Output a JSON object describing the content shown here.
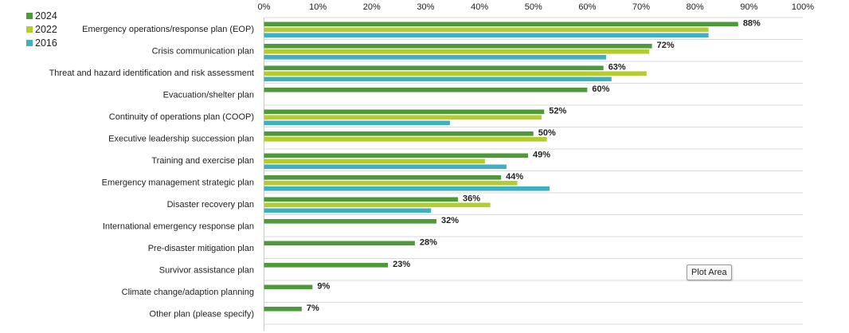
{
  "tooltip": {
    "text": "Plot Area"
  },
  "chart_data": {
    "type": "bar",
    "orientation": "horizontal",
    "title": "",
    "xlabel": "",
    "ylabel": "",
    "xlim": [
      0,
      100
    ],
    "x_ticks": [
      0,
      10,
      20,
      30,
      40,
      50,
      60,
      70,
      80,
      90,
      100
    ],
    "tick_suffix": "%",
    "axis_position": "top",
    "grid": "horizontal separators",
    "legend_position": "top-left",
    "categories": [
      "Emergency operations/response plan (EOP)",
      "Crisis communication plan",
      "Threat and hazard identification and risk assessment",
      "Evacuation/shelter plan",
      "Continuity of operations plan (COOP)",
      "Executive leadership succession plan",
      "Training and exercise plan",
      "Emergency management strategic plan",
      "Disaster recovery plan",
      "International emergency response plan",
      "Pre-disaster mitigation plan",
      "Survivor assistance plan",
      "Climate change/adaption planning",
      "Other plan (please specify)"
    ],
    "series": [
      {
        "name": "2024",
        "color": "#4e9a3a",
        "values": [
          88,
          72,
          63,
          60,
          52,
          50,
          49,
          44,
          36,
          32,
          28,
          23,
          9,
          7
        ],
        "labels": [
          "88%",
          "72%",
          "63%",
          "60%",
          "52%",
          "50%",
          "49%",
          "44%",
          "36%",
          "32%",
          "28%",
          "23%",
          "9%",
          "7%"
        ]
      },
      {
        "name": "2022",
        "color": "#b5cc2e",
        "values": [
          82.5,
          71.5,
          71,
          null,
          51.5,
          52.5,
          41,
          47,
          42,
          null,
          null,
          null,
          null,
          null
        ]
      },
      {
        "name": "2016",
        "color": "#3fb0c0",
        "values": [
          82.5,
          63.5,
          64.5,
          null,
          34.5,
          null,
          45,
          53,
          31,
          null,
          null,
          null,
          null,
          null
        ]
      }
    ]
  }
}
